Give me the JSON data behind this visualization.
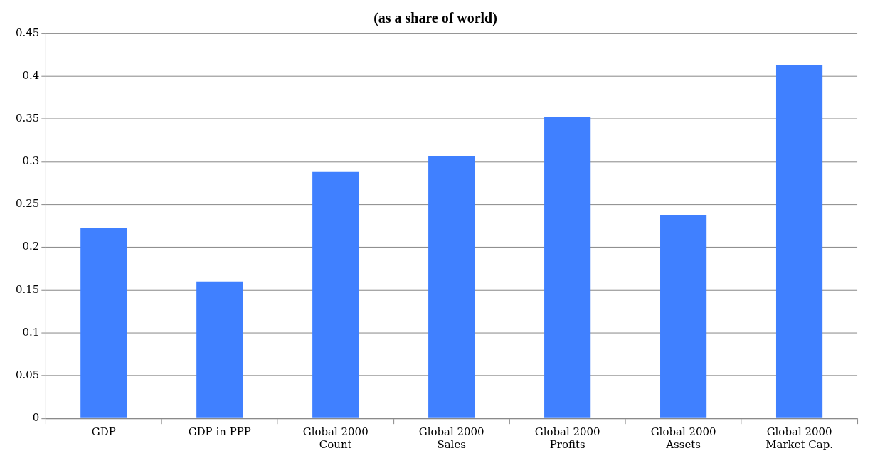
{
  "chart_data": {
    "type": "bar",
    "title": "(as a share of world)",
    "categories": [
      "GDP",
      "GDP in PPP",
      "Global 2000\nCount",
      "Global 2000\nSales",
      "Global 2000\nProfits",
      "Global 2000\nAssets",
      "Global 2000\nMarket Cap."
    ],
    "values": [
      0.223,
      0.16,
      0.288,
      0.306,
      0.352,
      0.237,
      0.413
    ],
    "color": "#4080ff",
    "ylim": [
      0,
      0.45
    ],
    "yticks": [
      0,
      0.05,
      0.1,
      0.15,
      0.2,
      0.25,
      0.3,
      0.35,
      0.4,
      0.45
    ],
    "grid": "y",
    "legend": false
  }
}
